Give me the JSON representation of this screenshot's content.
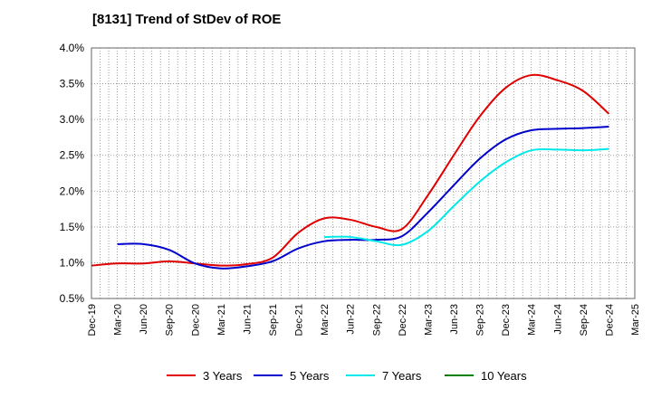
{
  "chart_data": {
    "type": "line",
    "title": "[8131]  Trend of StDev of ROE",
    "xlabel": "",
    "ylabel": "",
    "categories": [
      "Dec-19",
      "Mar-20",
      "Jun-20",
      "Sep-20",
      "Dec-20",
      "Mar-21",
      "Jun-21",
      "Sep-21",
      "Dec-21",
      "Mar-22",
      "Jun-22",
      "Sep-22",
      "Dec-22",
      "Mar-23",
      "Jun-23",
      "Sep-23",
      "Dec-23",
      "Mar-24",
      "Jun-24",
      "Sep-24",
      "Dec-24",
      "Mar-25"
    ],
    "y_ticks": [
      "0.5%",
      "1.0%",
      "1.5%",
      "2.0%",
      "2.5%",
      "3.0%",
      "3.5%",
      "4.0%"
    ],
    "ylim": [
      0.5,
      4.0
    ],
    "grid": true,
    "legend_position": "bottom",
    "series": [
      {
        "name": "3 Years",
        "color": "#e00000",
        "values": [
          0.96,
          0.99,
          0.99,
          1.02,
          0.99,
          0.96,
          0.98,
          1.07,
          1.42,
          1.62,
          1.6,
          1.5,
          1.47,
          1.94,
          2.5,
          3.04,
          3.44,
          3.62,
          3.55,
          3.4,
          3.08,
          null
        ]
      },
      {
        "name": "5 Years",
        "color": "#0000cc",
        "values": [
          null,
          1.26,
          1.26,
          1.18,
          0.99,
          0.92,
          0.95,
          1.02,
          1.2,
          1.3,
          1.32,
          1.32,
          1.37,
          1.7,
          2.08,
          2.45,
          2.72,
          2.85,
          2.87,
          2.88,
          2.9,
          null
        ]
      },
      {
        "name": "7 Years",
        "color": "#00e8e8",
        "values": [
          null,
          null,
          null,
          null,
          null,
          null,
          null,
          null,
          null,
          1.36,
          1.36,
          1.3,
          1.25,
          1.44,
          1.79,
          2.13,
          2.4,
          2.57,
          2.58,
          2.57,
          2.59,
          null
        ]
      },
      {
        "name": "10 Years",
        "color": "#008000",
        "values": [
          null,
          null,
          null,
          null,
          null,
          null,
          null,
          null,
          null,
          null,
          null,
          null,
          null,
          null,
          null,
          null,
          null,
          null,
          null,
          null,
          null,
          null
        ]
      }
    ]
  }
}
